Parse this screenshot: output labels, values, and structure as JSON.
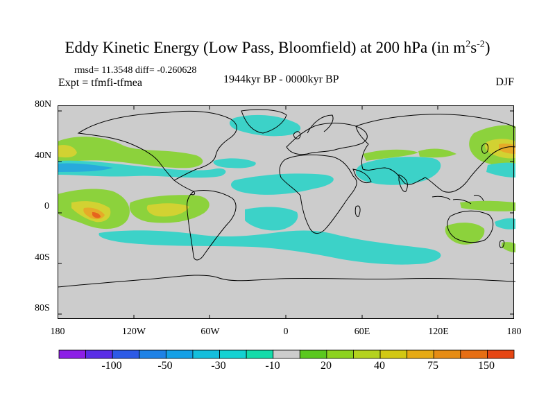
{
  "title": {
    "main": "Eddy Kinetic Energy (Low Pass, Bloomfield) at 200 hPa (in m",
    "sup1": "2",
    "mid": "s",
    "sup2": "-2",
    "end": ")"
  },
  "stats_text": "rmsd= 11.3548 diff= -0.260628",
  "expt_text": "Expt = tfmfi-tfmea",
  "period_text": "1944kyr BP - 0000kyr BP",
  "season_text": "DJF",
  "axes": {
    "lat_labels": [
      "80N",
      "40N",
      "0",
      "40S",
      "80S"
    ],
    "lon_labels": [
      "180",
      "120W",
      "60W",
      "0",
      "60E",
      "120E",
      "180"
    ]
  },
  "colorbar": {
    "colors": [
      "#8c1ee6",
      "#5a2de6",
      "#2d5ae6",
      "#1e82e6",
      "#14a0e6",
      "#14bedc",
      "#14d2d2",
      "#14dcaa",
      "#cccccc",
      "#5ac81e",
      "#8cd21e",
      "#b4d21e",
      "#d2c814",
      "#e6aa14",
      "#e68c14",
      "#e66e14",
      "#e64614"
    ],
    "labels": [
      "-100",
      "-50",
      "-30",
      "-10",
      "20",
      "40",
      "75",
      "150"
    ]
  },
  "fill_colors": {
    "ocean": "#cccccc",
    "cyan": "#3cd2c8",
    "green": "#8cd23c",
    "yellow": "#d2d232",
    "orange": "#e6aa28",
    "red": "#e6641e",
    "deep_cyan": "#28aadc"
  }
}
